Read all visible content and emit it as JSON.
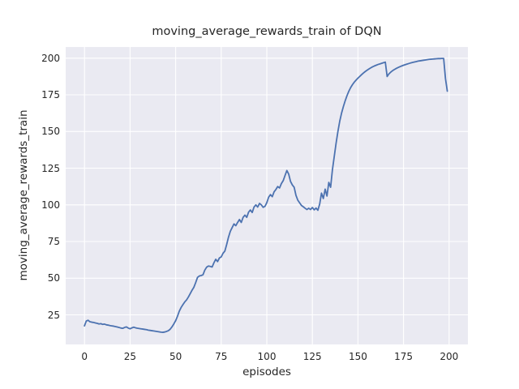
{
  "figure": {
    "title": "moving_average_rewards_train of DQN",
    "xlabel": "episodes",
    "ylabel": "moving_average_rewards_train"
  },
  "colors": {
    "line": "#4c72b0",
    "plot_background": "#eaeaf2",
    "grid": "#ffffff",
    "text": "#262626",
    "figure_background": "#ffffff"
  },
  "chart_data": {
    "type": "line",
    "title": "moving_average_rewards_train of DQN",
    "xlabel": "episodes",
    "ylabel": "moving_average_rewards_train",
    "style": "seaborn-darkgrid",
    "grid": true,
    "legend": false,
    "x_ticks": [
      0,
      25,
      50,
      75,
      100,
      125,
      150,
      175,
      200
    ],
    "y_ticks": [
      25,
      50,
      75,
      100,
      125,
      150,
      175,
      200
    ],
    "xlim": [
      -10.3,
      210.3
    ],
    "ylim": [
      4.84,
      207.62
    ],
    "x_description": "episode index: x[i] = i for i = 0..199",
    "series": [
      {
        "name": "moving_average_rewards_train",
        "color": "#4c72b0",
        "y": [
          17.5,
          20.8,
          21.3,
          20.3,
          20.0,
          19.8,
          19.5,
          19.2,
          18.8,
          19.0,
          18.5,
          18.7,
          18.2,
          18.0,
          17.7,
          17.5,
          17.3,
          17.0,
          16.7,
          16.4,
          16.0,
          15.8,
          16.4,
          16.8,
          16.0,
          15.5,
          16.1,
          16.6,
          16.2,
          15.9,
          15.7,
          15.5,
          15.3,
          15.1,
          14.9,
          14.6,
          14.4,
          14.2,
          14.0,
          13.8,
          13.6,
          13.4,
          13.2,
          13.1,
          13.3,
          13.7,
          14.2,
          15.2,
          16.8,
          18.8,
          21.0,
          24.0,
          27.5,
          30.0,
          32.0,
          33.8,
          35.2,
          37.2,
          39.5,
          41.8,
          43.8,
          47.0,
          50.5,
          51.5,
          51.8,
          52.3,
          55.5,
          57.5,
          58.3,
          58.0,
          57.6,
          60.5,
          62.9,
          61.3,
          63.8,
          64.5,
          67.0,
          68.5,
          73.0,
          78.0,
          82.0,
          84.5,
          87.0,
          85.8,
          88.0,
          90.0,
          88.0,
          91.5,
          93.0,
          91.5,
          95.0,
          96.5,
          94.8,
          98.5,
          100.0,
          98.5,
          101.0,
          100.0,
          98.3,
          99.0,
          101.5,
          105.2,
          107.0,
          105.6,
          108.9,
          110.5,
          112.5,
          111.5,
          114.5,
          116.5,
          120.0,
          123.4,
          121.0,
          116.0,
          113.6,
          112.0,
          106.5,
          103.2,
          101.4,
          99.6,
          98.7,
          97.7,
          96.8,
          97.7,
          96.8,
          98.2,
          96.6,
          97.8,
          96.3,
          100.5,
          108.0,
          104.3,
          110.7,
          106.0,
          115.3,
          112.0,
          124.0,
          133.0,
          142.0,
          150.0,
          157.0,
          162.5,
          167.0,
          171.0,
          174.5,
          177.5,
          180.0,
          182.0,
          183.7,
          185.1,
          186.4,
          187.6,
          188.8,
          189.9,
          190.9,
          191.8,
          192.6,
          193.4,
          194.1,
          194.7,
          195.2,
          195.7,
          196.1,
          196.5,
          196.9,
          197.3,
          187.5,
          189.3,
          190.5,
          191.5,
          192.3,
          193.0,
          193.6,
          194.2,
          194.7,
          195.2,
          195.6,
          196.0,
          196.4,
          196.8,
          197.1,
          197.4,
          197.7,
          198.0,
          198.2,
          198.4,
          198.6,
          198.8,
          199.0,
          199.2,
          199.3,
          199.4,
          199.5,
          199.6,
          199.7,
          199.7,
          199.8,
          199.8,
          186.0,
          177.5
        ]
      }
    ]
  }
}
